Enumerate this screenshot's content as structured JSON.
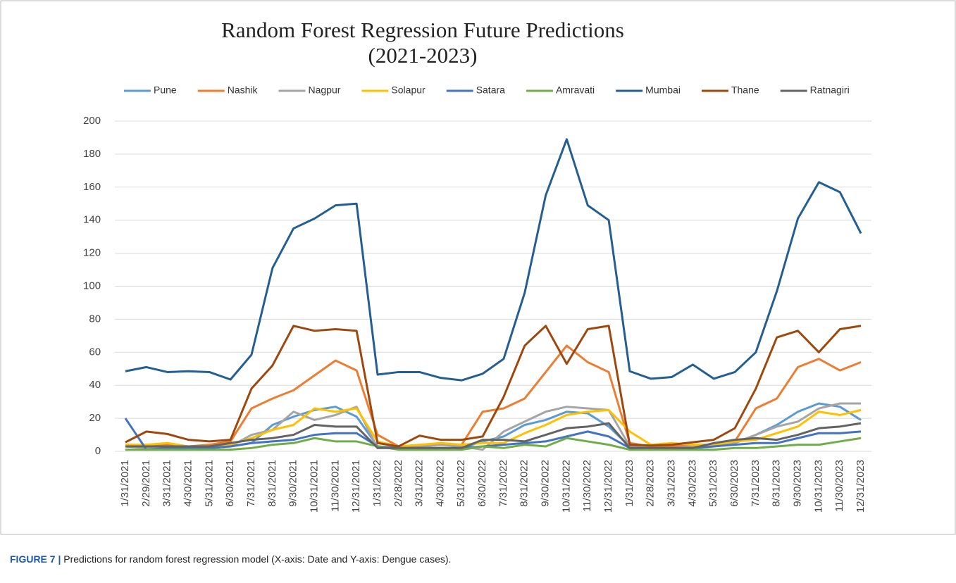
{
  "chart_data": {
    "type": "line",
    "title": "Random Forest Regression Future Predictions",
    "subtitle": "(2021-2023)",
    "caption_label": "FIGURE 7 |",
    "caption": "Predictions for random forest regression model (X-axis: Date and Y-axis: Dengue cases).",
    "categories": [
      "1/31/2021",
      "2/29/2021",
      "3/31/2021",
      "4/30/2021",
      "5/31/2021",
      "6/30/2021",
      "7/31/2021",
      "8/31/2021",
      "9/30/2021",
      "10/31/2021",
      "11/30/2021",
      "12/31/2021",
      "1/31/2022",
      "2/28/2022",
      "3/31/2022",
      "4/30/2022",
      "5/31/2022",
      "6/30/2022",
      "7/31/2022",
      "8/31/2022",
      "9/30/2022",
      "10/31/2022",
      "11/30/2022",
      "12/31/2022",
      "1/31/2023",
      "2/28/2023",
      "3/31/2023",
      "4/30/2023",
      "5/31/2023",
      "6/30/2023",
      "7/31/2023",
      "8/31/2023",
      "9/30/2023",
      "10/31/2023",
      "11/30/2023",
      "12/31/2023"
    ],
    "series": [
      {
        "name": "Pune",
        "color": "#5b9bd5",
        "values": [
          3,
          2,
          3,
          2,
          2,
          3,
          5,
          16,
          21,
          25,
          27,
          21,
          3,
          2,
          2,
          2,
          2,
          6,
          9,
          16,
          19,
          24,
          23,
          15,
          3,
          2,
          2,
          2,
          3,
          5,
          10,
          16,
          24,
          29,
          27,
          19
        ]
      },
      {
        "name": "Nashik",
        "color": "#ed7d31",
        "values": [
          4,
          3,
          4,
          3,
          4,
          6,
          26,
          32,
          37,
          46,
          55,
          49,
          10,
          3,
          3,
          4,
          4,
          24,
          26,
          32,
          48,
          64,
          54,
          48,
          5,
          3,
          3,
          4,
          4,
          6,
          26,
          32,
          51,
          56,
          49,
          54
        ]
      },
      {
        "name": "Nagpur",
        "color": "#a5a5a5",
        "values": [
          3,
          2,
          2,
          2,
          2,
          3,
          10,
          13,
          24,
          19,
          22,
          27,
          2,
          2,
          3,
          4,
          3,
          1,
          12,
          18,
          24,
          27,
          26,
          25,
          3,
          2,
          2,
          3,
          3,
          5,
          10,
          15,
          18,
          26,
          29,
          29
        ]
      },
      {
        "name": "Solapur",
        "color": "#ffc000",
        "values": [
          4,
          4,
          5,
          3,
          3,
          4,
          8,
          13,
          16,
          26,
          24,
          26,
          6,
          3,
          4,
          5,
          4,
          5,
          5,
          11,
          16,
          22,
          24,
          25,
          12,
          4,
          5,
          4,
          4,
          6,
          7,
          11,
          15,
          24,
          22,
          25
        ]
      },
      {
        "name": "Satara",
        "color": "#4472c4",
        "values": [
          20,
          1,
          2,
          2,
          2,
          3,
          5,
          6,
          7,
          10,
          11,
          11,
          3,
          2,
          2,
          2,
          2,
          3,
          4,
          5,
          6,
          9,
          12,
          9,
          2,
          2,
          2,
          2,
          3,
          4,
          5,
          5,
          8,
          11,
          11,
          12
        ]
      },
      {
        "name": "Amravati",
        "color": "#70ad47",
        "values": [
          1,
          1,
          1,
          1,
          1,
          1,
          2,
          4,
          5,
          8,
          6,
          6,
          3,
          1,
          1,
          1,
          1,
          3,
          2,
          4,
          3,
          8,
          6,
          4,
          1,
          1,
          1,
          1,
          1,
          2,
          2,
          3,
          4,
          4,
          6,
          8
        ]
      },
      {
        "name": "Mumbai",
        "color": "#255e91",
        "values": [
          48.5,
          51,
          48,
          48.5,
          48,
          43.5,
          58.5,
          111,
          135,
          141,
          149,
          150,
          46.5,
          48,
          48,
          44.5,
          43,
          47,
          56,
          96,
          155,
          189,
          149,
          140,
          48.5,
          44,
          45,
          52.5,
          44,
          48,
          60,
          97,
          141,
          163,
          157,
          132
        ]
      },
      {
        "name": "Thane",
        "color": "#9e480e",
        "values": [
          5.5,
          12,
          10.5,
          7,
          6,
          7,
          38,
          52,
          76,
          73,
          74,
          73,
          5,
          3,
          9.5,
          7,
          7,
          9,
          33,
          64,
          76,
          53,
          74,
          76,
          4,
          3.5,
          4,
          5.5,
          7,
          14,
          38,
          69,
          73,
          60,
          74,
          76
        ]
      },
      {
        "name": "Ratnagiri",
        "color": "#636363",
        "values": [
          3,
          3,
          3,
          3,
          3,
          5,
          7,
          8,
          10,
          16,
          15,
          15,
          2,
          2,
          2,
          2,
          2,
          7,
          7,
          6,
          10,
          14,
          15,
          17,
          2,
          2,
          2,
          2,
          5,
          7,
          8,
          7,
          10,
          14,
          15,
          17
        ]
      }
    ],
    "ylim": [
      0,
      200
    ],
    "yticks": [
      0,
      20,
      40,
      60,
      80,
      100,
      120,
      140,
      160,
      180,
      200
    ],
    "grid": true,
    "legend": "top"
  }
}
